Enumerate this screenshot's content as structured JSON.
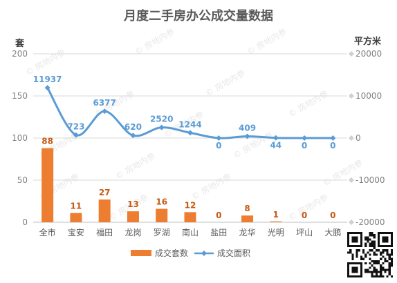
{
  "chart_data": {
    "type": "bar",
    "title": "月度二手房办公成交量数据",
    "categories": [
      "全市",
      "宝安",
      "福田",
      "龙岗",
      "罗湖",
      "南山",
      "盐田",
      "龙华",
      "光明",
      "坪山",
      "大鹏"
    ],
    "y_left_label": "套",
    "y_right_label": "平方米",
    "y_left_ticks": [
      "0",
      "50",
      "100",
      "150",
      "200"
    ],
    "y_right_ticks": [
      "-20000",
      "-10000",
      "0",
      "10000",
      "20000"
    ],
    "y_left_lim": [
      0,
      200
    ],
    "y_right_lim": [
      -20000,
      20000
    ],
    "grid": true,
    "legend_position": "bottom",
    "series": [
      {
        "name": "成交套数",
        "type": "bar",
        "axis": "left",
        "color": "#ED7D31",
        "values": [
          88,
          11,
          27,
          13,
          16,
          12,
          0,
          8,
          1,
          0,
          0
        ],
        "labels": [
          "88",
          "11",
          "27",
          "13",
          "16",
          "12",
          "0",
          "8",
          "1",
          "0",
          "0"
        ]
      },
      {
        "name": "成交面积",
        "type": "line",
        "axis": "right",
        "smooth": true,
        "color": "#5B9BD5",
        "values": [
          11937,
          723,
          6377,
          620,
          2520,
          1244,
          0,
          409,
          44,
          0,
          0
        ],
        "labels": [
          "11937",
          "723",
          "6377",
          "620",
          "2520",
          "1244",
          "0",
          "409",
          "44",
          "0",
          "0"
        ]
      }
    ],
    "watermark": "房地内参"
  }
}
